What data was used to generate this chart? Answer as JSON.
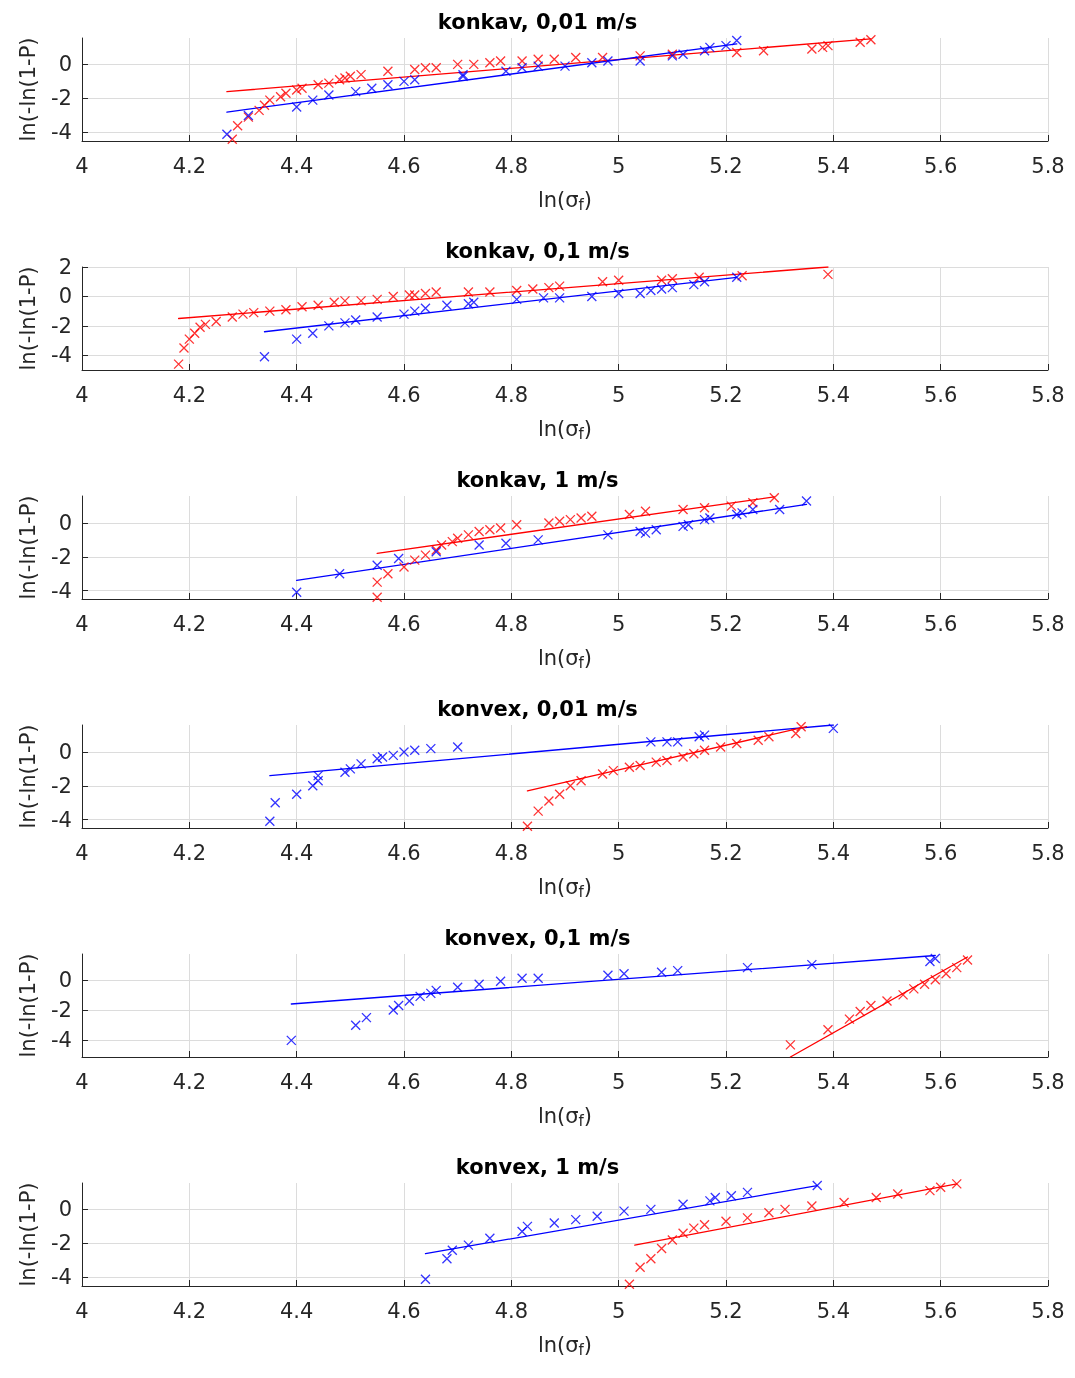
{
  "chart_data": [
    {
      "type": "scatter",
      "title": "konkav, 0,01 m/s",
      "xlabel": "ln(σ$_{f}$)",
      "ylabel": "ln(-ln(1-P)",
      "xlim": [
        4,
        5.8
      ],
      "xticks": [
        4,
        4.2,
        4.4,
        4.6,
        4.8,
        5,
        5.2,
        5.4,
        5.6,
        5.8
      ],
      "ylim": [
        -4.5,
        1.55
      ],
      "yticks": [
        -4,
        -2,
        0
      ],
      "grid": true,
      "marker": "cross",
      "series": [
        {
          "color": "#ff0000",
          "x": [
            4.28,
            4.29,
            4.31,
            4.33,
            4.34,
            4.35,
            4.37,
            4.38,
            4.4,
            4.41,
            4.44,
            4.46,
            4.48,
            4.49,
            4.5,
            4.52,
            4.57,
            4.62,
            4.64,
            4.66,
            4.7,
            4.73,
            4.76,
            4.78,
            4.82,
            4.85,
            4.88,
            4.92,
            4.97,
            5.04,
            5.1,
            5.22,
            5.27,
            5.36,
            5.38,
            5.39,
            5.45,
            5.47
          ],
          "values": [
            -4.4,
            -3.6,
            -3.1,
            -2.7,
            -2.4,
            -2.1,
            -1.9,
            -1.7,
            -1.5,
            -1.4,
            -1.2,
            -1.1,
            -0.9,
            -0.8,
            -0.7,
            -0.6,
            -0.4,
            -0.3,
            -0.2,
            -0.2,
            0.0,
            0.0,
            0.1,
            0.2,
            0.2,
            0.3,
            0.3,
            0.4,
            0.4,
            0.5,
            0.6,
            0.7,
            0.8,
            0.9,
            1.0,
            1.1,
            1.3,
            1.45
          ]
        },
        {
          "color": "#0000ff",
          "x": [
            4.27,
            4.31,
            4.4,
            4.43,
            4.46,
            4.51,
            4.54,
            4.57,
            4.6,
            4.62,
            4.71,
            4.71,
            4.79,
            4.82,
            4.85,
            4.9,
            4.95,
            4.98,
            5.04,
            5.1,
            5.12,
            5.16,
            5.17,
            5.2,
            5.22
          ],
          "values": [
            -4.1,
            -3.0,
            -2.5,
            -2.1,
            -1.8,
            -1.6,
            -1.4,
            -1.2,
            -1.0,
            -0.9,
            -0.7,
            -0.6,
            -0.4,
            -0.2,
            -0.1,
            -0.1,
            0.1,
            0.2,
            0.2,
            0.5,
            0.6,
            0.8,
            1.0,
            1.1,
            1.4
          ]
        },
        {
          "type": "line",
          "color": "#ff0000",
          "marker": "none",
          "x": [
            4.27,
            5.47
          ],
          "values": [
            -1.6,
            1.5
          ]
        },
        {
          "type": "line",
          "color": "#0000ff",
          "marker": "none",
          "x": [
            4.27,
            5.22
          ],
          "values": [
            -2.8,
            1.2
          ]
        }
      ]
    },
    {
      "type": "scatter",
      "title": "konkav, 0,1 m/s",
      "xlabel": "ln(σ$_{f}$)",
      "ylabel": "ln(-ln(1-P)",
      "xlim": [
        4,
        5.8
      ],
      "xticks": [
        4,
        4.2,
        4.4,
        4.6,
        4.8,
        5,
        5.2,
        5.4,
        5.6,
        5.8
      ],
      "ylim": [
        -5,
        2
      ],
      "yticks": [
        -4,
        -2,
        0,
        2
      ],
      "grid": true,
      "marker": "cross",
      "series": [
        {
          "color": "#ff0000",
          "x": [
            4.18,
            4.19,
            4.2,
            4.21,
            4.22,
            4.23,
            4.25,
            4.28,
            4.3,
            4.32,
            4.35,
            4.38,
            4.41,
            4.44,
            4.47,
            4.49,
            4.52,
            4.55,
            4.58,
            4.61,
            4.62,
            4.64,
            4.66,
            4.72,
            4.76,
            4.81,
            4.84,
            4.87,
            4.89,
            4.97,
            5.0,
            5.08,
            5.1,
            5.15,
            5.23,
            5.39
          ],
          "values": [
            -4.6,
            -3.5,
            -2.9,
            -2.5,
            -2.1,
            -1.9,
            -1.7,
            -1.4,
            -1.2,
            -1.1,
            -1.0,
            -0.9,
            -0.7,
            -0.6,
            -0.4,
            -0.3,
            -0.3,
            -0.2,
            0.0,
            0.1,
            0.1,
            0.2,
            0.3,
            0.3,
            0.3,
            0.4,
            0.5,
            0.6,
            0.7,
            1.0,
            1.1,
            1.1,
            1.2,
            1.3,
            1.4,
            1.5
          ]
        },
        {
          "color": "#0000ff",
          "x": [
            4.34,
            4.4,
            4.43,
            4.46,
            4.49,
            4.51,
            4.55,
            4.6,
            4.62,
            4.64,
            4.68,
            4.72,
            4.73,
            4.81,
            4.86,
            4.89,
            4.95,
            5.0,
            5.04,
            5.06,
            5.08,
            5.1,
            5.14,
            5.16,
            5.22
          ],
          "values": [
            -4.1,
            -2.9,
            -2.5,
            -2.0,
            -1.8,
            -1.6,
            -1.4,
            -1.2,
            -1.0,
            -0.8,
            -0.6,
            -0.5,
            -0.4,
            -0.2,
            -0.1,
            -0.1,
            0.0,
            0.2,
            0.2,
            0.4,
            0.5,
            0.6,
            0.8,
            1.0,
            1.3
          ]
        },
        {
          "type": "line",
          "color": "#ff0000",
          "marker": "none",
          "x": [
            4.18,
            5.39
          ],
          "values": [
            -1.5,
            2.0
          ]
        },
        {
          "type": "line",
          "color": "#0000ff",
          "marker": "none",
          "x": [
            4.34,
            5.22
          ],
          "values": [
            -2.4,
            1.3
          ]
        }
      ]
    },
    {
      "type": "scatter",
      "title": "konkav, 1 m/s",
      "xlabel": "ln(σ$_{f}$)",
      "ylabel": "ln(-ln(1-P)",
      "xlim": [
        4,
        5.8
      ],
      "xticks": [
        4,
        4.2,
        4.4,
        4.6,
        4.8,
        5,
        5.2,
        5.4,
        5.6,
        5.8
      ],
      "ylim": [
        -4.5,
        1.6
      ],
      "yticks": [
        -4,
        -2,
        0
      ],
      "grid": true,
      "marker": "cross",
      "series": [
        {
          "color": "#ff0000",
          "x": [
            4.55,
            4.55,
            4.57,
            4.6,
            4.62,
            4.64,
            4.66,
            4.67,
            4.69,
            4.7,
            4.72,
            4.74,
            4.76,
            4.78,
            4.81,
            4.87,
            4.89,
            4.91,
            4.93,
            4.95,
            5.02,
            5.05,
            5.12,
            5.16,
            5.21,
            5.25,
            5.29
          ],
          "values": [
            -4.4,
            -3.5,
            -3.0,
            -2.6,
            -2.2,
            -1.9,
            -1.6,
            -1.3,
            -1.1,
            -0.9,
            -0.7,
            -0.5,
            -0.4,
            -0.3,
            -0.1,
            0.0,
            0.1,
            0.2,
            0.3,
            0.4,
            0.5,
            0.7,
            0.8,
            0.9,
            1.0,
            1.2,
            1.5
          ]
        },
        {
          "color": "#0000ff",
          "x": [
            4.4,
            4.48,
            4.55,
            4.59,
            4.66,
            4.74,
            4.79,
            4.85,
            4.98,
            5.04,
            5.05,
            5.07,
            5.12,
            5.13,
            5.16,
            5.17,
            5.22,
            5.23,
            5.25,
            5.3,
            5.35
          ],
          "values": [
            -4.1,
            -3.0,
            -2.5,
            -2.1,
            -1.7,
            -1.3,
            -1.2,
            -1.0,
            -0.7,
            -0.5,
            -0.6,
            -0.4,
            -0.2,
            -0.1,
            0.2,
            0.3,
            0.5,
            0.6,
            0.8,
            0.8,
            1.3
          ]
        },
        {
          "type": "line",
          "color": "#ff0000",
          "marker": "none",
          "x": [
            4.55,
            5.29
          ],
          "values": [
            -1.8,
            1.55
          ]
        },
        {
          "type": "line",
          "color": "#0000ff",
          "marker": "none",
          "x": [
            4.4,
            5.35
          ],
          "values": [
            -3.4,
            1.1
          ]
        }
      ]
    },
    {
      "type": "scatter",
      "title": "konvex, 0,01 m/s",
      "xlabel": "ln(σ$_{f}$)",
      "ylabel": "ln(-ln(1-P)",
      "xlim": [
        4,
        5.8
      ],
      "xticks": [
        4,
        4.2,
        4.4,
        4.6,
        4.8,
        5,
        5.2,
        5.4,
        5.6,
        5.8
      ],
      "ylim": [
        -4.5,
        1.6
      ],
      "yticks": [
        -4,
        -2,
        0
      ],
      "grid": true,
      "marker": "cross",
      "series": [
        {
          "color": "#0000ff",
          "x": [
            4.35,
            4.36,
            4.4,
            4.43,
            4.44,
            4.44,
            4.49,
            4.5,
            4.52,
            4.55,
            4.56,
            4.58,
            4.6,
            4.62,
            4.65,
            4.7,
            5.06,
            5.09,
            5.11,
            5.15,
            5.16,
            5.4
          ],
          "values": [
            -4.1,
            -3.0,
            -2.5,
            -2.0,
            -1.7,
            -1.4,
            -1.2,
            -1.0,
            -0.7,
            -0.4,
            -0.3,
            -0.2,
            0.0,
            0.1,
            0.2,
            0.3,
            0.6,
            0.6,
            0.6,
            0.9,
            1.0,
            1.4
          ]
        },
        {
          "color": "#ff0000",
          "x": [
            4.83,
            4.85,
            4.87,
            4.89,
            4.91,
            4.93,
            4.97,
            4.99,
            5.02,
            5.04,
            5.07,
            5.09,
            5.12,
            5.14,
            5.16,
            5.19,
            5.22,
            5.26,
            5.28,
            5.33,
            5.34
          ],
          "values": [
            -4.4,
            -3.5,
            -2.9,
            -2.5,
            -2.0,
            -1.7,
            -1.3,
            -1.1,
            -0.9,
            -0.8,
            -0.6,
            -0.5,
            -0.3,
            -0.1,
            0.1,
            0.3,
            0.5,
            0.7,
            0.9,
            1.1,
            1.5
          ]
        },
        {
          "type": "line",
          "color": "#0000ff",
          "marker": "none",
          "x": [
            4.35,
            5.4
          ],
          "values": [
            -1.4,
            1.6
          ]
        },
        {
          "type": "line",
          "color": "#ff0000",
          "marker": "none",
          "x": [
            4.83,
            5.35
          ],
          "values": [
            -2.3,
            1.5
          ]
        }
      ]
    },
    {
      "type": "scatter",
      "title": "konvex, 0,1 m/s",
      "xlabel": "ln(σ$_{f}$)",
      "ylabel": "ln(-ln(1-P)",
      "xlim": [
        4,
        5.8
      ],
      "xticks": [
        4,
        4.2,
        4.4,
        4.6,
        4.8,
        5,
        5.2,
        5.4,
        5.6,
        5.8
      ],
      "ylim": [
        -5.1,
        1.7
      ],
      "yticks": [
        -4,
        -2,
        0
      ],
      "grid": true,
      "marker": "cross",
      "series": [
        {
          "color": "#0000ff",
          "x": [
            4.39,
            4.51,
            4.53,
            4.58,
            4.59,
            4.61,
            4.63,
            4.65,
            4.66,
            4.7,
            4.74,
            4.78,
            4.82,
            4.85,
            4.98,
            5.01,
            5.08,
            5.11,
            5.24,
            5.36,
            5.58,
            5.59
          ],
          "values": [
            -4.0,
            -3.0,
            -2.5,
            -2.0,
            -1.7,
            -1.4,
            -1.1,
            -0.9,
            -0.7,
            -0.5,
            -0.3,
            -0.1,
            0.1,
            0.1,
            0.3,
            0.4,
            0.5,
            0.6,
            0.8,
            1.0,
            1.2,
            1.4
          ]
        },
        {
          "color": "#ff0000",
          "x": [
            5.32,
            5.39,
            5.43,
            5.45,
            5.47,
            5.5,
            5.53,
            5.55,
            5.57,
            5.59,
            5.61,
            5.63,
            5.65
          ],
          "values": [
            -4.3,
            -3.3,
            -2.6,
            -2.1,
            -1.7,
            -1.4,
            -1.0,
            -0.6,
            -0.3,
            0.0,
            0.4,
            0.8,
            1.3
          ]
        },
        {
          "type": "line",
          "color": "#0000ff",
          "marker": "none",
          "x": [
            4.39,
            5.59
          ],
          "values": [
            -1.6,
            1.6
          ]
        },
        {
          "type": "line",
          "color": "#ff0000",
          "marker": "none",
          "x": [
            5.32,
            5.65
          ],
          "values": [
            -5.1,
            1.5
          ]
        }
      ]
    },
    {
      "type": "scatter",
      "title": "konvex, 1 m/s",
      "xlabel": "ln(σ$_{f}$)",
      "ylabel": "ln(-ln(1-P)",
      "xlim": [
        4,
        5.8
      ],
      "xticks": [
        4,
        4.2,
        4.4,
        4.6,
        4.8,
        5,
        5.2,
        5.4,
        5.6,
        5.8
      ],
      "ylim": [
        -4.5,
        1.55
      ],
      "yticks": [
        -4,
        -2,
        0
      ],
      "grid": true,
      "marker": "cross",
      "series": [
        {
          "color": "#0000ff",
          "x": [
            4.64,
            4.68,
            4.69,
            4.72,
            4.76,
            4.82,
            4.83,
            4.88,
            4.92,
            4.96,
            5.01,
            5.06,
            5.12,
            5.17,
            5.18,
            5.21,
            5.24,
            5.37
          ],
          "values": [
            -4.1,
            -2.9,
            -2.4,
            -2.1,
            -1.7,
            -1.3,
            -1.0,
            -0.8,
            -0.6,
            -0.4,
            -0.1,
            0.0,
            0.3,
            0.5,
            0.7,
            0.8,
            1.0,
            1.4
          ]
        },
        {
          "color": "#ff0000",
          "x": [
            5.02,
            5.04,
            5.06,
            5.08,
            5.1,
            5.12,
            5.14,
            5.16,
            5.2,
            5.24,
            5.28,
            5.31,
            5.36,
            5.42,
            5.48,
            5.52,
            5.58,
            5.6,
            5.63
          ],
          "values": [
            -4.4,
            -3.4,
            -2.9,
            -2.3,
            -1.8,
            -1.4,
            -1.1,
            -0.9,
            -0.7,
            -0.5,
            -0.2,
            0.0,
            0.2,
            0.4,
            0.7,
            0.9,
            1.1,
            1.3,
            1.5
          ]
        },
        {
          "type": "line",
          "color": "#0000ff",
          "marker": "none",
          "x": [
            4.64,
            5.37
          ],
          "values": [
            -2.6,
            1.4
          ]
        },
        {
          "type": "line",
          "color": "#ff0000",
          "marker": "none",
          "x": [
            5.03,
            5.63
          ],
          "values": [
            -2.1,
            1.5
          ]
        }
      ]
    }
  ]
}
